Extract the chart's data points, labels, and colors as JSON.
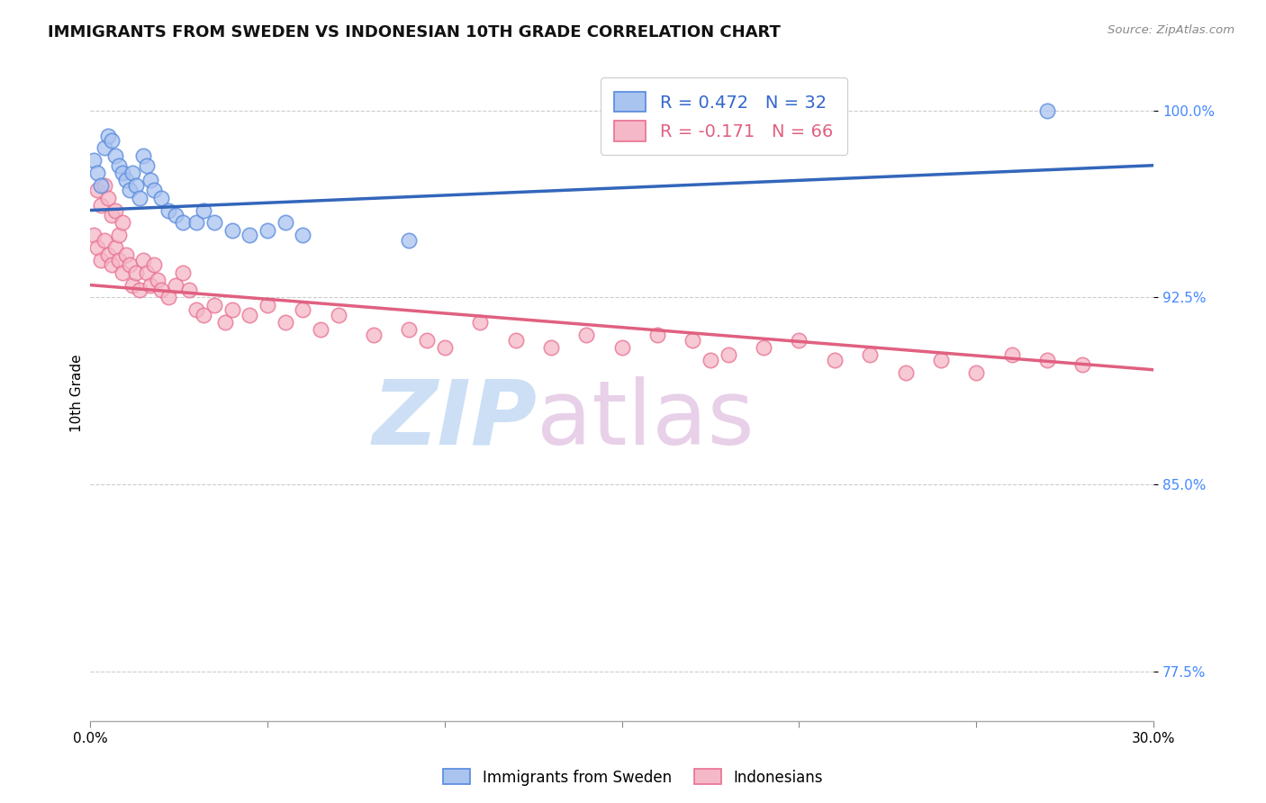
{
  "title": "IMMIGRANTS FROM SWEDEN VS INDONESIAN 10TH GRADE CORRELATION CHART",
  "source": "Source: ZipAtlas.com",
  "ylabel": "10th Grade",
  "yticks": [
    0.775,
    0.85,
    0.925,
    1.0
  ],
  "ytick_labels": [
    "77.5%",
    "85.0%",
    "92.5%",
    "100.0%"
  ],
  "xmin": 0.0,
  "xmax": 0.3,
  "ymin": 0.755,
  "ymax": 1.018,
  "sweden_color": "#aac4f0",
  "indonesia_color": "#f5b8c8",
  "sweden_edge_color": "#5588dd",
  "indonesia_edge_color": "#e87090",
  "sweden_line_color": "#3366bb",
  "indonesia_line_color": "#e06080",
  "grid_color": "#cccccc",
  "background_color": "#ffffff",
  "title_fontsize": 13,
  "axis_label_fontsize": 11,
  "tick_fontsize": 11,
  "sweden_x": [
    0.001,
    0.002,
    0.003,
    0.004,
    0.005,
    0.006,
    0.007,
    0.008,
    0.009,
    0.01,
    0.011,
    0.012,
    0.013,
    0.014,
    0.015,
    0.016,
    0.017,
    0.018,
    0.02,
    0.022,
    0.024,
    0.026,
    0.03,
    0.032,
    0.035,
    0.04,
    0.045,
    0.05,
    0.055,
    0.06,
    0.09,
    0.27
  ],
  "sweden_y": [
    0.98,
    0.975,
    0.97,
    0.985,
    0.99,
    0.988,
    0.982,
    0.978,
    0.975,
    0.972,
    0.968,
    0.975,
    0.97,
    0.965,
    0.982,
    0.978,
    0.972,
    0.968,
    0.965,
    0.96,
    0.958,
    0.955,
    0.955,
    0.96,
    0.955,
    0.952,
    0.95,
    0.952,
    0.955,
    0.95,
    0.948,
    1.0
  ],
  "indonesia_x": [
    0.001,
    0.002,
    0.003,
    0.004,
    0.005,
    0.006,
    0.007,
    0.008,
    0.009,
    0.01,
    0.011,
    0.012,
    0.013,
    0.014,
    0.015,
    0.016,
    0.017,
    0.018,
    0.019,
    0.02,
    0.022,
    0.024,
    0.026,
    0.028,
    0.03,
    0.032,
    0.035,
    0.038,
    0.04,
    0.045,
    0.05,
    0.055,
    0.06,
    0.065,
    0.07,
    0.08,
    0.09,
    0.095,
    0.1,
    0.11,
    0.12,
    0.13,
    0.14,
    0.15,
    0.16,
    0.17,
    0.175,
    0.18,
    0.19,
    0.2,
    0.21,
    0.22,
    0.23,
    0.24,
    0.25,
    0.26,
    0.27,
    0.28,
    0.002,
    0.003,
    0.004,
    0.005,
    0.006,
    0.007,
    0.008,
    0.009
  ],
  "indonesia_y": [
    0.95,
    0.945,
    0.94,
    0.948,
    0.942,
    0.938,
    0.945,
    0.94,
    0.935,
    0.942,
    0.938,
    0.93,
    0.935,
    0.928,
    0.94,
    0.935,
    0.93,
    0.938,
    0.932,
    0.928,
    0.925,
    0.93,
    0.935,
    0.928,
    0.92,
    0.918,
    0.922,
    0.915,
    0.92,
    0.918,
    0.922,
    0.915,
    0.92,
    0.912,
    0.918,
    0.91,
    0.912,
    0.908,
    0.905,
    0.915,
    0.908,
    0.905,
    0.91,
    0.905,
    0.91,
    0.908,
    0.9,
    0.902,
    0.905,
    0.908,
    0.9,
    0.902,
    0.895,
    0.9,
    0.895,
    0.902,
    0.9,
    0.898,
    0.968,
    0.962,
    0.97,
    0.965,
    0.958,
    0.96,
    0.95,
    0.955
  ]
}
